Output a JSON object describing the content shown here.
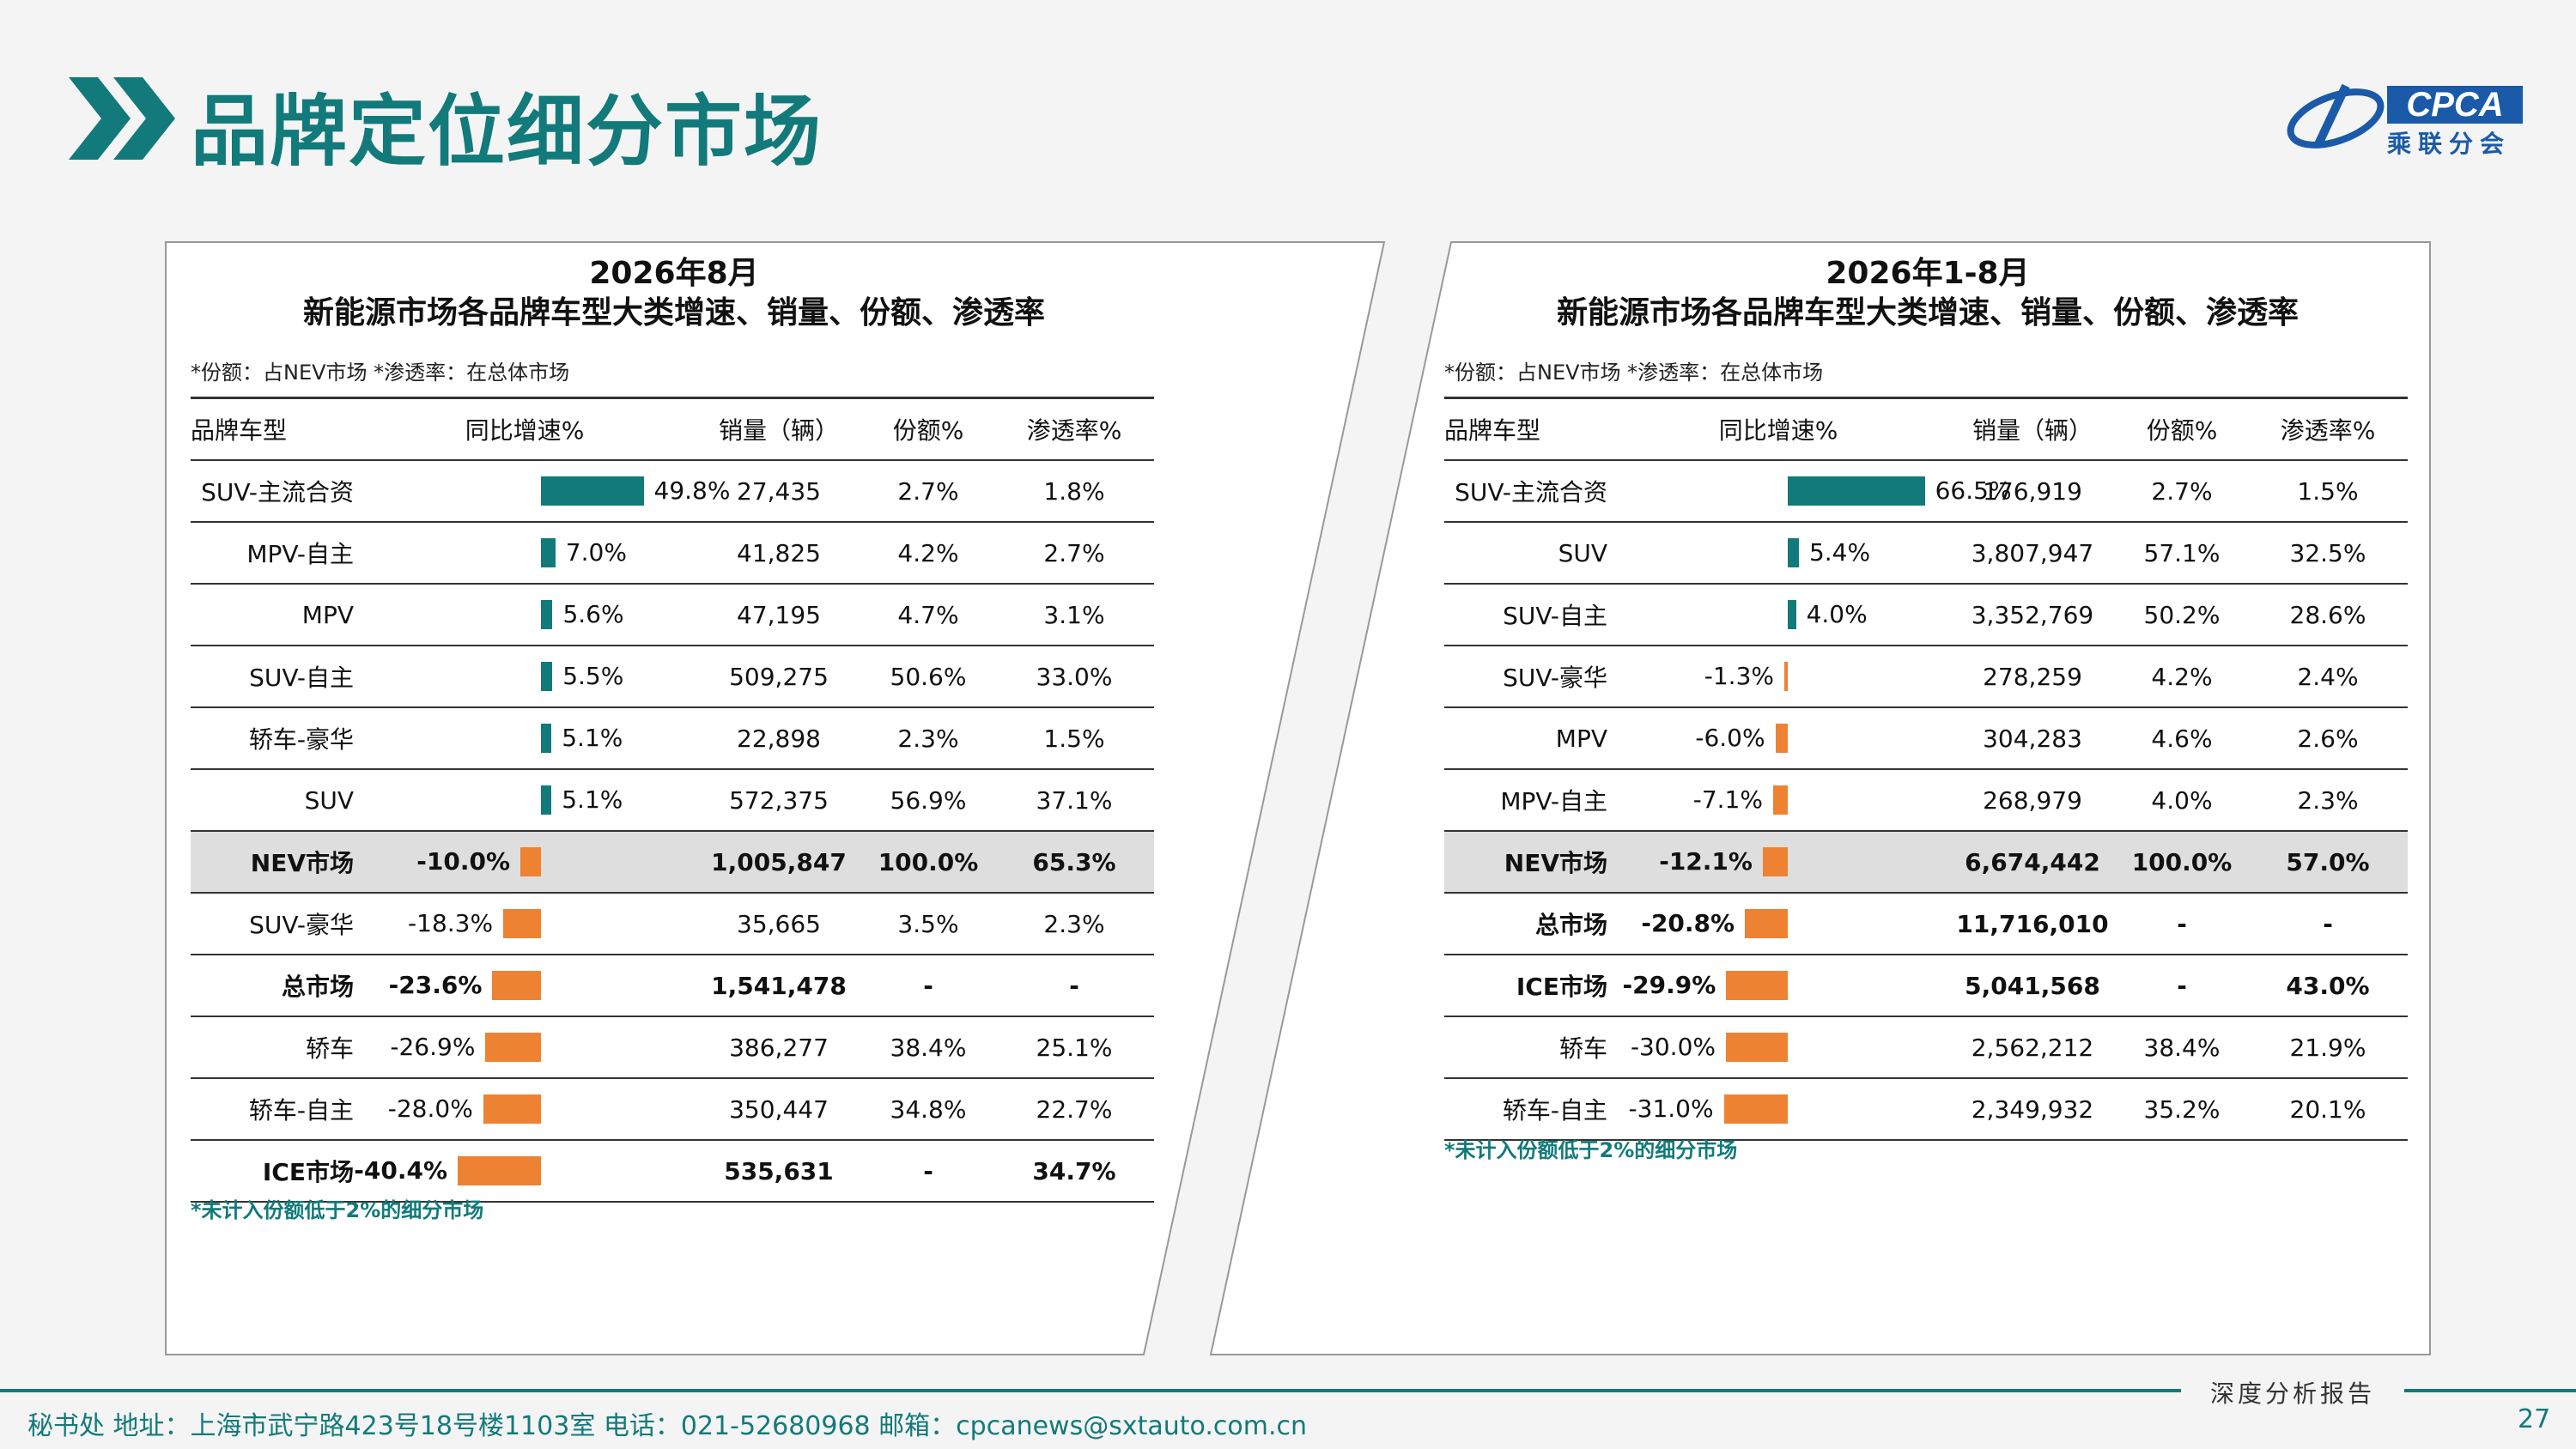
{
  "header": {
    "title": "品牌定位细分市场",
    "logo_text": "CPCA",
    "logo_sub": "乘联分会"
  },
  "panels": [
    {
      "title_line1": "2026年8月",
      "title_line2": "新能源市场各品牌车型大类增速、销量、份额、渗透率",
      "note": "*份额：占NEV市场   *渗透率：在总体市场",
      "columns": [
        "品牌车型",
        "同比增速%",
        "销量（辆）",
        "份额%",
        "渗透率%"
      ],
      "rows": [
        {
          "name": "SUV-主流合资",
          "growth": 49.8,
          "growth_label": "49.8%",
          "sales": "27,435",
          "share": "2.7%",
          "pen": "1.8%",
          "style": ""
        },
        {
          "name": "MPV-自主",
          "growth": 7.0,
          "growth_label": "7.0%",
          "sales": "41,825",
          "share": "4.2%",
          "pen": "2.7%",
          "style": ""
        },
        {
          "name": "MPV",
          "growth": 5.6,
          "growth_label": "5.6%",
          "sales": "47,195",
          "share": "4.7%",
          "pen": "3.1%",
          "style": ""
        },
        {
          "name": "SUV-自主",
          "growth": 5.5,
          "growth_label": "5.5%",
          "sales": "509,275",
          "share": "50.6%",
          "pen": "33.0%",
          "style": ""
        },
        {
          "name": "轿车-豪华",
          "growth": 5.1,
          "growth_label": "5.1%",
          "sales": "22,898",
          "share": "2.3%",
          "pen": "1.5%",
          "style": ""
        },
        {
          "name": "SUV",
          "growth": 5.1,
          "growth_label": "5.1%",
          "sales": "572,375",
          "share": "56.9%",
          "pen": "37.1%",
          "style": ""
        },
        {
          "name": "NEV市场",
          "growth": -10.0,
          "growth_label": "-10.0%",
          "sales": "1,005,847",
          "share": "100.0%",
          "pen": "65.3%",
          "style": "hl"
        },
        {
          "name": "SUV-豪华",
          "growth": -18.3,
          "growth_label": "-18.3%",
          "sales": "35,665",
          "share": "3.5%",
          "pen": "2.3%",
          "style": ""
        },
        {
          "name": "总市场",
          "growth": -23.6,
          "growth_label": "-23.6%",
          "sales": "1,541,478",
          "share": "-",
          "pen": "-",
          "style": "bold"
        },
        {
          "name": "轿车",
          "growth": -26.9,
          "growth_label": "-26.9%",
          "sales": "386,277",
          "share": "38.4%",
          "pen": "25.1%",
          "style": ""
        },
        {
          "name": "轿车-自主",
          "growth": -28.0,
          "growth_label": "-28.0%",
          "sales": "350,447",
          "share": "34.8%",
          "pen": "22.7%",
          "style": ""
        },
        {
          "name": "ICE市场",
          "growth": -40.4,
          "growth_label": "-40.4%",
          "sales": "535,631",
          "share": "-",
          "pen": "34.7%",
          "style": "bold"
        }
      ],
      "bottom_note": "*未计入份额低于2%的细分市场"
    },
    {
      "title_line1": "2026年1-8月",
      "title_line2": "新能源市场各品牌车型大类增速、销量、份额、渗透率",
      "note": "*份额：占NEV市场   *渗透率：在总体市场",
      "columns": [
        "品牌车型",
        "同比增速%",
        "销量（辆）",
        "份额%",
        "渗透率%"
      ],
      "rows": [
        {
          "name": "SUV-主流合资",
          "growth": 66.5,
          "growth_label": "66.5%",
          "sales": "176,919",
          "share": "2.7%",
          "pen": "1.5%",
          "style": ""
        },
        {
          "name": "SUV",
          "growth": 5.4,
          "growth_label": "5.4%",
          "sales": "3,807,947",
          "share": "57.1%",
          "pen": "32.5%",
          "style": ""
        },
        {
          "name": "SUV-自主",
          "growth": 4.0,
          "growth_label": "4.0%",
          "sales": "3,352,769",
          "share": "50.2%",
          "pen": "28.6%",
          "style": ""
        },
        {
          "name": "SUV-豪华",
          "growth": -1.3,
          "growth_label": "-1.3%",
          "sales": "278,259",
          "share": "4.2%",
          "pen": "2.4%",
          "style": ""
        },
        {
          "name": "MPV",
          "growth": -6.0,
          "growth_label": "-6.0%",
          "sales": "304,283",
          "share": "4.6%",
          "pen": "2.6%",
          "style": ""
        },
        {
          "name": "MPV-自主",
          "growth": -7.1,
          "growth_label": "-7.1%",
          "sales": "268,979",
          "share": "4.0%",
          "pen": "2.3%",
          "style": ""
        },
        {
          "name": "NEV市场",
          "growth": -12.1,
          "growth_label": "-12.1%",
          "sales": "6,674,442",
          "share": "100.0%",
          "pen": "57.0%",
          "style": "hl"
        },
        {
          "name": "总市场",
          "growth": -20.8,
          "growth_label": "-20.8%",
          "sales": "11,716,010",
          "share": "-",
          "pen": "-",
          "style": "bold"
        },
        {
          "name": "ICE市场",
          "growth": -29.9,
          "growth_label": "-29.9%",
          "sales": "5,041,568",
          "share": "-",
          "pen": "43.0%",
          "style": "bold"
        },
        {
          "name": "轿车",
          "growth": -30.0,
          "growth_label": "-30.0%",
          "sales": "2,562,212",
          "share": "38.4%",
          "pen": "21.9%",
          "style": ""
        },
        {
          "name": "轿车-自主",
          "growth": -31.0,
          "growth_label": "-31.0%",
          "sales": "2,349,932",
          "share": "35.2%",
          "pen": "20.1%",
          "style": ""
        }
      ],
      "bottom_note": "*未计入份额低于2%的细分市场"
    }
  ],
  "footer": {
    "report_label": "深度分析报告",
    "contact": "秘书处   地址：上海市武宁路423号18号楼1103室  电话：021-52680968   邮箱：cpcanews@sxtauto.com.cn",
    "page_number": "27"
  },
  "colors": {
    "positive": "#127a7a",
    "negative": "#ee8233",
    "accent": "#127a7a"
  }
}
